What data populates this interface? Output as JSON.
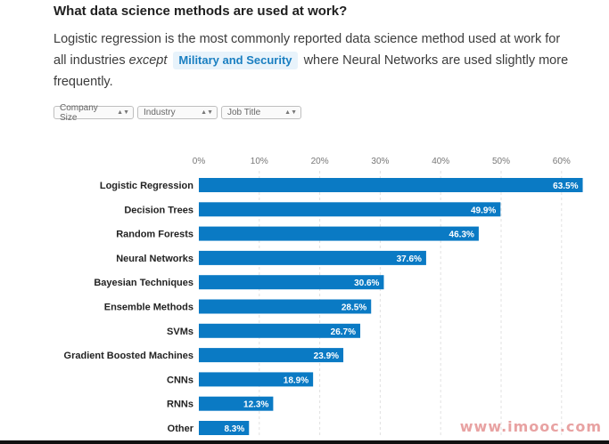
{
  "header": {
    "title": "What data science methods are used at work?",
    "desc_part1": "Logistic regression is the most commonly reported data science method used at work for all industries ",
    "desc_except": "except",
    "desc_highlight": "Military and Security",
    "desc_part2": " where Neural Networks are used slightly more frequently."
  },
  "filters": [
    {
      "label": "Company Size"
    },
    {
      "label": "Industry"
    },
    {
      "label": "Job Title"
    }
  ],
  "chart_data": {
    "type": "bar",
    "orientation": "horizontal",
    "categories": [
      "Logistic Regression",
      "Decision Trees",
      "Random Forests",
      "Neural Networks",
      "Bayesian Techniques",
      "Ensemble Methods",
      "SVMs",
      "Gradient Boosted Machines",
      "CNNs",
      "RNNs",
      "Other"
    ],
    "values": [
      63.5,
      49.9,
      46.3,
      37.6,
      30.6,
      28.5,
      26.7,
      23.9,
      18.9,
      12.3,
      8.3
    ],
    "value_labels": [
      "63.5%",
      "49.9%",
      "46.3%",
      "37.6%",
      "30.6%",
      "28.5%",
      "26.7%",
      "23.9%",
      "18.9%",
      "12.3%",
      "8.3%"
    ],
    "xticks": [
      "0%",
      "10%",
      "20%",
      "30%",
      "40%",
      "50%",
      "60%"
    ],
    "xlim": [
      0,
      64
    ],
    "color": "#0a7ac4"
  },
  "watermark": "www.imooc.com"
}
